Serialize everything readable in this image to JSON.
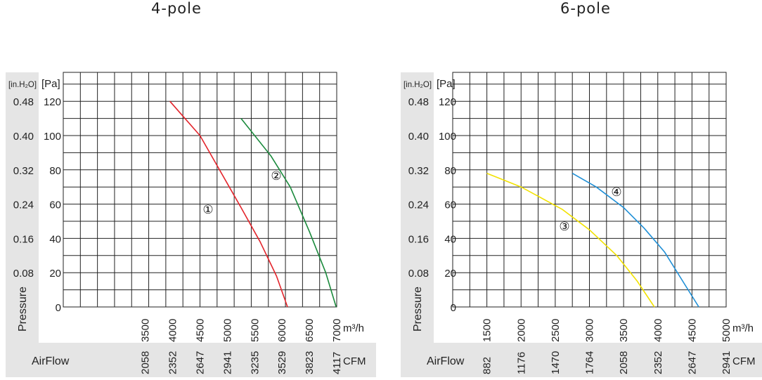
{
  "chart_data": [
    {
      "type": "line",
      "title": "4-pole",
      "xlabel": "AirFlow",
      "ylabel": "Pressure",
      "x_unit": "m³/h",
      "x2_unit": "CFM",
      "y_unit": "[Pa]",
      "y2_unit": "[in.H₂O]",
      "xlim": [
        2000,
        7000
      ],
      "ylim": [
        0,
        120
      ],
      "x_ticks": [
        "3500",
        "4000",
        "4500",
        "5000",
        "5500",
        "6000",
        "6500",
        "7000"
      ],
      "x_tick_values": [
        3500,
        4000,
        4500,
        5000,
        5500,
        6000,
        6500,
        7000
      ],
      "cfm_ticks": [
        "2058",
        "2352",
        "2647",
        "2941",
        "3235",
        "3529",
        "3823",
        "4117"
      ],
      "y_ticks": [
        "0",
        "20",
        "40",
        "60",
        "80",
        "100",
        "120"
      ],
      "y_tick_values": [
        0,
        20,
        40,
        60,
        80,
        100,
        120
      ],
      "y2_ticks": [
        "",
        "0.08",
        "0.16",
        "0.24",
        "0.32",
        "0.40",
        "0.48"
      ],
      "grid": true,
      "series": [
        {
          "name": "①",
          "color": "#e3242b",
          "x": [
            3950,
            4500,
            5000,
            5250,
            5600,
            5900,
            6100
          ],
          "y": [
            120,
            100,
            72,
            58,
            38,
            18,
            0
          ]
        },
        {
          "name": "②",
          "color": "#1a8a3c",
          "x": [
            5250,
            5800,
            6150,
            6500,
            6800,
            6990
          ],
          "y": [
            110,
            88,
            70,
            44,
            20,
            0
          ]
        }
      ]
    },
    {
      "type": "line",
      "title": "6-pole",
      "xlabel": "AirFlow",
      "ylabel": "Pressure",
      "x_unit": "m³/h",
      "x2_unit": "CFM",
      "y_unit": "[Pa]",
      "y2_unit": "[in.H₂O]",
      "xlim": [
        1000,
        5000
      ],
      "ylim": [
        0,
        120
      ],
      "x_ticks": [
        "1500",
        "2000",
        "2500",
        "3000",
        "3500",
        "4000",
        "4500",
        "5000"
      ],
      "x_tick_values": [
        1500,
        2000,
        2500,
        3000,
        3500,
        4000,
        4500,
        5000
      ],
      "cfm_ticks": [
        "882",
        "1176",
        "1470",
        "1764",
        "2058",
        "2352",
        "2647",
        "2941"
      ],
      "y_ticks": [
        "0",
        "20",
        "40",
        "60",
        "80",
        "100",
        "120"
      ],
      "y_tick_values": [
        0,
        20,
        40,
        60,
        80,
        100,
        120
      ],
      "y2_ticks": [
        "",
        "0.08",
        "0.16",
        "0.24",
        "0.32",
        "0.40",
        "0.48"
      ],
      "grid": true,
      "series": [
        {
          "name": "③",
          "color": "#f2e200",
          "x": [
            1500,
            2000,
            2600,
            3000,
            3400,
            3700,
            3950
          ],
          "y": [
            78,
            70,
            57,
            45,
            30,
            15,
            0
          ]
        },
        {
          "name": "④",
          "color": "#1f8fd6",
          "x": [
            2750,
            3100,
            3500,
            3800,
            4100,
            4350,
            4600
          ],
          "y": [
            78,
            70,
            58,
            46,
            32,
            16,
            0
          ]
        }
      ]
    }
  ]
}
